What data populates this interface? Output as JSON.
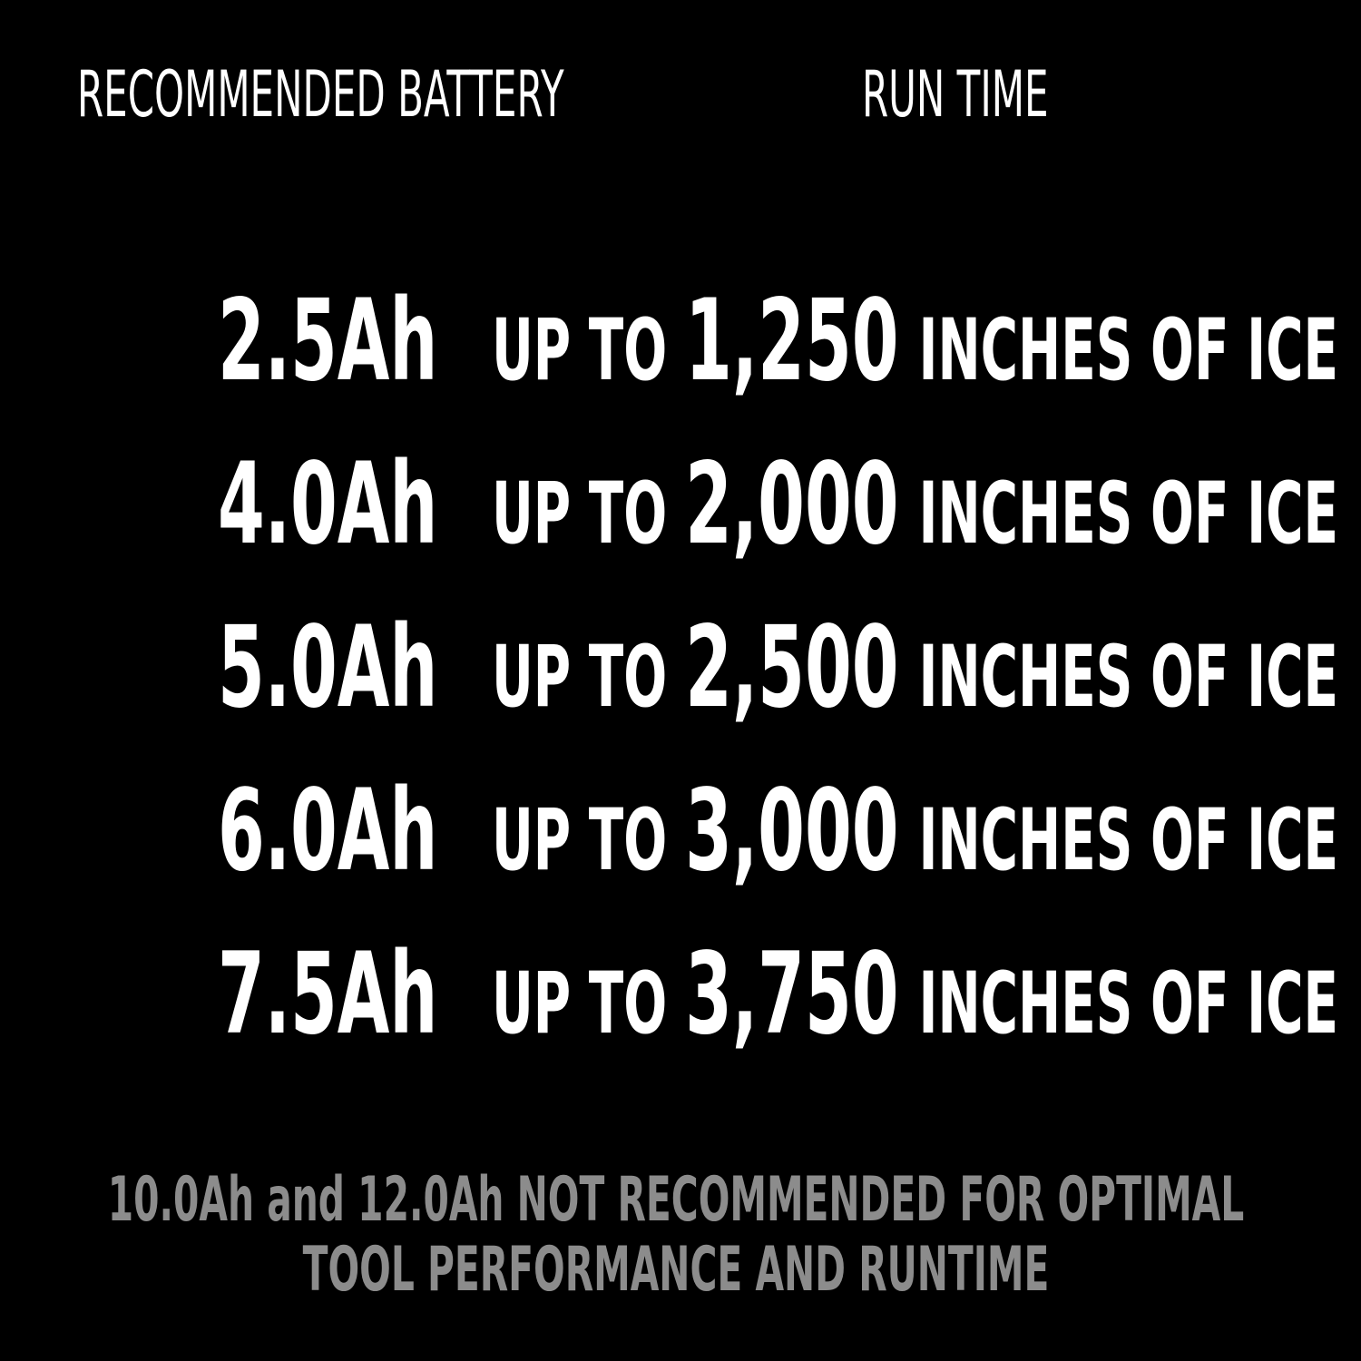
{
  "header": {
    "battery_label": "RECOMMENDED BATTERY",
    "runtime_label": "RUN TIME"
  },
  "rows": [
    {
      "battery": "2.5Ah",
      "prefix": "UP TO",
      "amount": "1,250",
      "suffix": "INCHES OF ICE"
    },
    {
      "battery": "4.0Ah",
      "prefix": "UP TO",
      "amount": "2,000",
      "suffix": "INCHES OF ICE"
    },
    {
      "battery": "5.0Ah",
      "prefix": "UP TO",
      "amount": "2,500",
      "suffix": "INCHES OF ICE"
    },
    {
      "battery": "6.0Ah",
      "prefix": "UP TO",
      "amount": "3,000",
      "suffix": "INCHES OF ICE"
    },
    {
      "battery": "7.5Ah",
      "prefix": "UP TO",
      "amount": "3,750",
      "suffix": "INCHES OF ICE"
    }
  ],
  "footnote": {
    "lines": [
      "10.0Ah and 12.0Ah NOT RECOMMENDED FOR OPTIMAL",
      "TOOL PERFORMANCE AND RUNTIME"
    ]
  }
}
